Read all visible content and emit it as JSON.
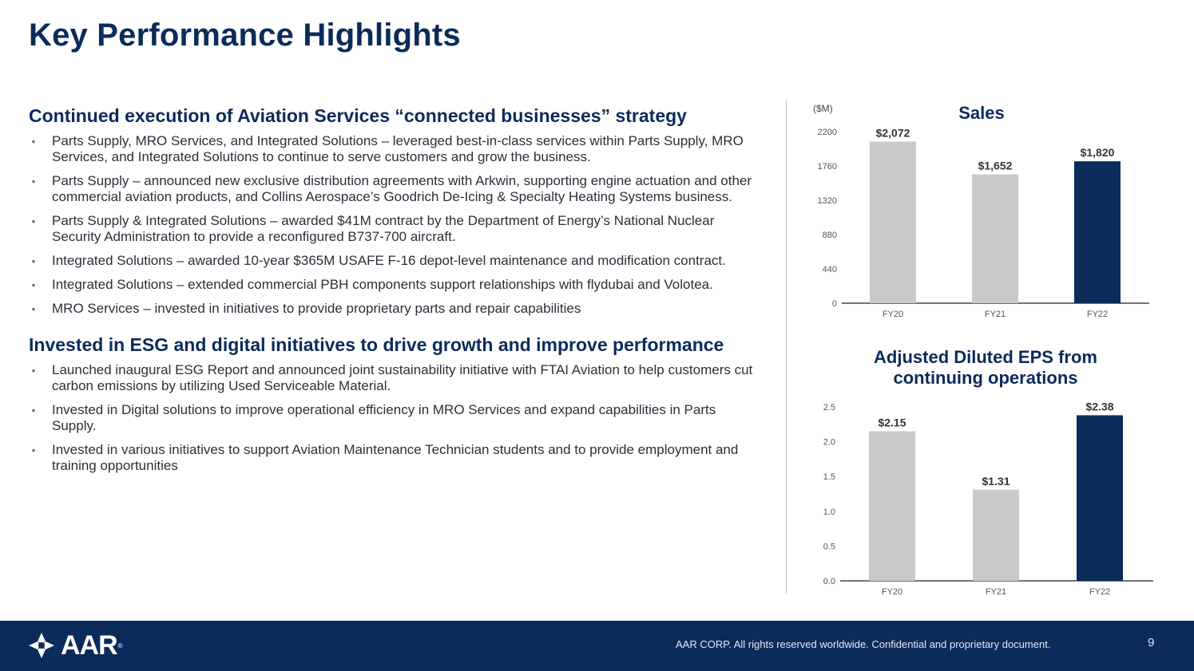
{
  "page": {
    "title": "Key Performance Highlights",
    "page_number": "9"
  },
  "sections": [
    {
      "heading": "Continued execution of Aviation Services “connected businesses” strategy",
      "bullets": [
        "Parts Supply, MRO Services, and Integrated Solutions – leveraged best-in-class services within Parts Supply, MRO Services, and Integrated Solutions to continue to serve customers and grow the business.",
        "Parts Supply – announced new exclusive distribution agreements with Arkwin, supporting engine actuation and other commercial aviation products, and Collins Aerospace’s Goodrich De-Icing & Specialty Heating Systems business.",
        "Parts Supply & Integrated Solutions – awarded $41M contract by the Department of Energy’s National Nuclear Security Administration to provide a reconfigured B737-700 aircraft.",
        "Integrated Solutions – awarded 10-year $365M USAFE F-16 depot-level maintenance and modification contract.",
        "Integrated Solutions – extended commercial PBH components support relationships with flydubai and Volotea.",
        "MRO Services – invested in initiatives to provide proprietary parts and repair capabilities"
      ]
    },
    {
      "heading": "Invested in ESG and digital initiatives to drive growth and improve performance",
      "bullets": [
        "Launched inaugural ESG Report and announced joint sustainability initiative with FTAI Aviation to help customers cut carbon emissions by utilizing Used Serviceable Material.",
        "Invested in Digital solutions to improve operational efficiency in MRO Services and expand capabilities in Parts Supply.",
        "Invested in various initiatives to support Aviation Maintenance Technician students and to provide employment and training opportunities"
      ]
    }
  ],
  "chart_data": [
    {
      "type": "bar",
      "title": "Sales",
      "unit_label": "($M)",
      "categories": [
        "FY20",
        "FY21",
        "FY22"
      ],
      "values": [
        2072,
        1652,
        1820
      ],
      "data_labels": [
        "$2,072",
        "$1,652",
        "$1,820"
      ],
      "yticks": [
        0,
        440,
        880,
        1320,
        1760,
        2200
      ],
      "ylim": [
        0,
        2200
      ],
      "bar_colors": [
        "#c8c9cb",
        "#c8c9cb",
        "#0b2b5a"
      ],
      "label_colors": [
        "#333333",
        "#333333",
        "#5aa5d6"
      ]
    },
    {
      "type": "bar",
      "title": "Adjusted Diluted EPS from continuing operations",
      "categories": [
        "FY20",
        "FY21",
        "FY22"
      ],
      "values": [
        2.15,
        1.31,
        2.38
      ],
      "data_labels": [
        "$2.15",
        "$1.31",
        "$2.38"
      ],
      "yticks": [
        0.0,
        0.5,
        1.0,
        1.5,
        2.0,
        2.5
      ],
      "ytick_labels": [
        "0.0",
        "0.5",
        "1.0",
        "1.5",
        "2.0",
        "2.5"
      ],
      "ylim": [
        0,
        2.5
      ],
      "bar_colors": [
        "#c8c9cb",
        "#c8c9cb",
        "#0b2b5a"
      ],
      "label_colors": [
        "#333333",
        "#333333",
        "#5aa5d6"
      ]
    }
  ],
  "footer": {
    "logo_text": "AAR",
    "logo_mark": "®",
    "note": "AAR CORP. All rights reserved worldwide. Confidential and proprietary document."
  },
  "colors": {
    "brand_navy": "#0b2b5a",
    "bar_grey": "#c8c9cb",
    "accent_blue": "#5aa5d6"
  },
  "icons": {
    "logo": "aar-star-logo-icon",
    "bullet": "bullet-dot-icon"
  }
}
